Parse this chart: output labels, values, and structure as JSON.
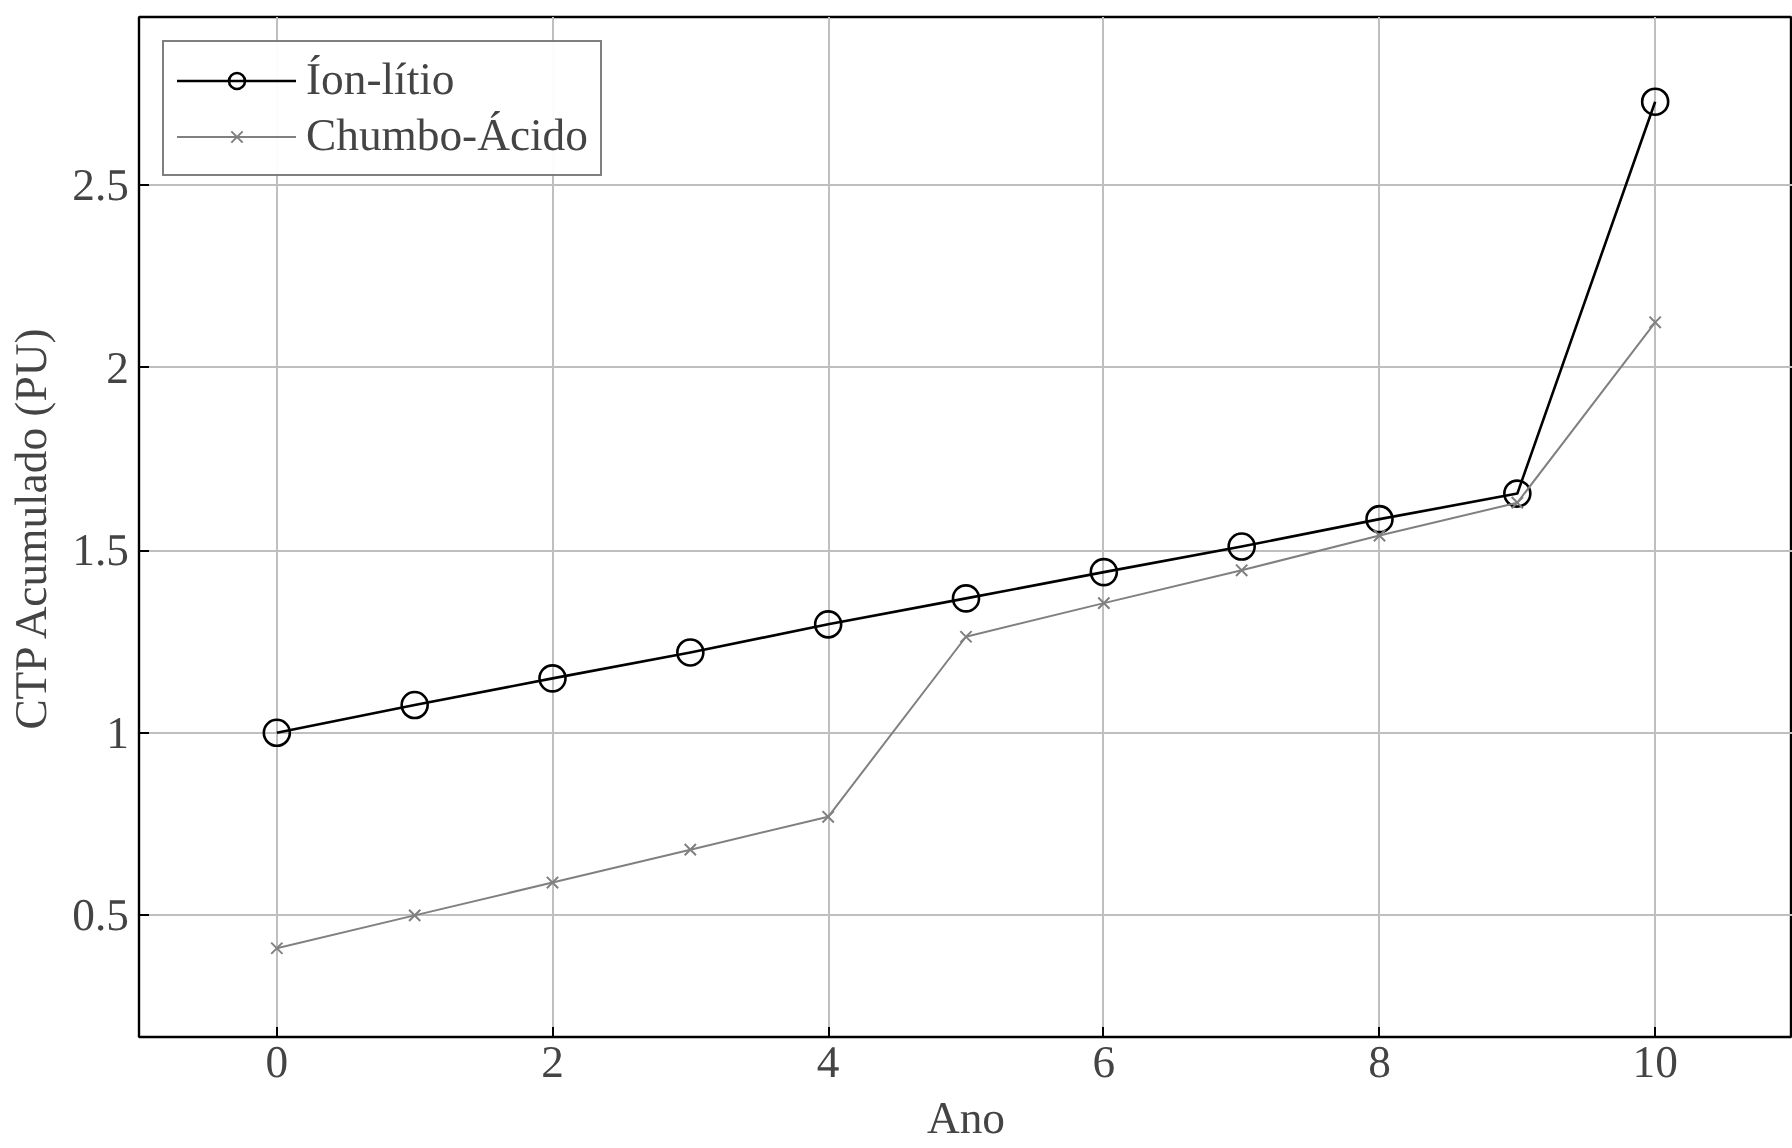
{
  "chart_data": {
    "type": "line",
    "xlabel": "Ano",
    "ylabel": "CTP Acumulado (PU)",
    "x": [
      0,
      1,
      2,
      3,
      4,
      5,
      6,
      7,
      8,
      9,
      10
    ],
    "series": [
      {
        "name": "Íon-lítio",
        "color": "#000000",
        "marker": "circle",
        "values": [
          1.0,
          1.076,
          1.149,
          1.22,
          1.297,
          1.368,
          1.44,
          1.51,
          1.585,
          1.655,
          2.728
        ]
      },
      {
        "name": "Chumbo-Ácido",
        "color": "#808080",
        "marker": "cross",
        "values": [
          0.41,
          0.5,
          0.59,
          0.68,
          0.77,
          1.263,
          1.355,
          1.445,
          1.54,
          1.63,
          2.124
        ]
      }
    ],
    "xlim": [
      -1,
      11
    ],
    "ylim": [
      0.167,
      2.96
    ],
    "xticks": [
      0,
      2,
      4,
      6,
      8,
      10
    ],
    "yticks": [
      0.5,
      1,
      1.5,
      2,
      2.5
    ],
    "grid": true,
    "legend": "top left",
    "line_style": "solid"
  }
}
